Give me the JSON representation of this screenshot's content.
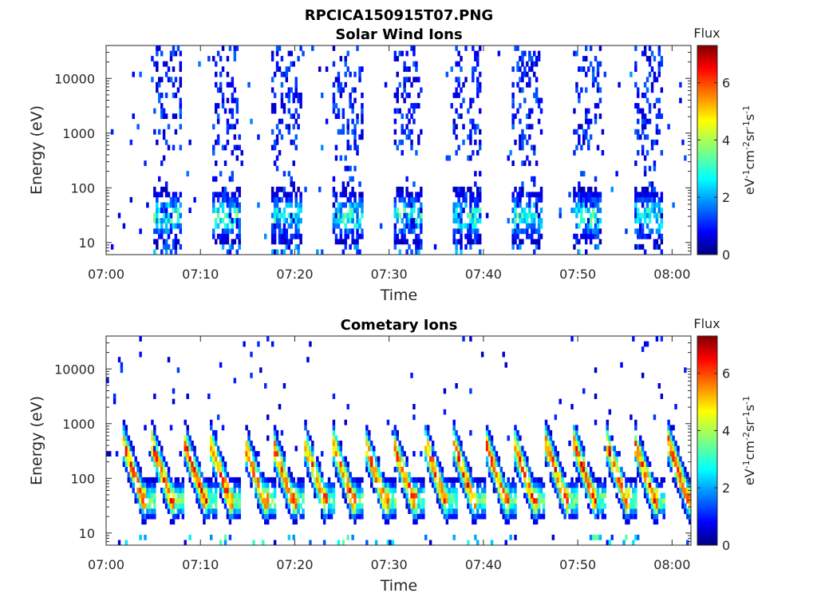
{
  "figure": {
    "title": "RPCICA150915T07.PNG"
  },
  "colormap": "jet",
  "chart_data": [
    {
      "type": "heatmap",
      "title": "Solar Wind Ions",
      "xlabel": "Time",
      "ylabel": "Energy (eV)",
      "x_ticks": [
        "07:00",
        "07:10",
        "07:20",
        "07:30",
        "07:40",
        "07:50",
        "08:00"
      ],
      "y_ticks": [
        "10",
        "100",
        "1000",
        "10000"
      ],
      "y_scale": "log",
      "ylim": [
        6,
        40000
      ],
      "xlim_minutes": [
        0,
        62
      ],
      "colorbar": {
        "label": "Flux",
        "unit_label": "eV-1cm-2sr-1s-1",
        "range": [
          0,
          7.3
        ],
        "ticks": [
          "0",
          "2",
          "4",
          "6"
        ]
      },
      "burst_start_minutes": [
        4.8,
        11.2,
        17.5,
        24.0,
        30.3,
        36.7,
        43.0,
        49.4,
        55.8
      ],
      "burst_duration_minutes": 3.0,
      "low_energy_peak_eV": 30,
      "peak_flux": 3.5
    },
    {
      "type": "heatmap",
      "title": "Cometary Ions",
      "xlabel": "Time",
      "ylabel": "Energy (eV)",
      "x_ticks": [
        "07:00",
        "07:10",
        "07:20",
        "07:30",
        "07:40",
        "07:50",
        "08:00"
      ],
      "y_ticks": [
        "10",
        "100",
        "1000",
        "10000"
      ],
      "y_scale": "log",
      "ylim": [
        6,
        40000
      ],
      "xlim_minutes": [
        0,
        62
      ],
      "colorbar": {
        "label": "Flux",
        "unit_label": "eV-1cm-2sr-1s-1",
        "range": [
          0,
          7.3
        ],
        "ticks": [
          "0",
          "2",
          "4",
          "6"
        ]
      },
      "burst_start_minutes": [
        2.0,
        5.0,
        8.5,
        11.2,
        14.8,
        17.8,
        21.2,
        24.2,
        27.6,
        30.6,
        34.0,
        37.0,
        40.4,
        43.4,
        46.8,
        49.8,
        53.2,
        56.2,
        59.8
      ],
      "peak_energy_eV": 40,
      "peak_flux": 6.5
    }
  ]
}
